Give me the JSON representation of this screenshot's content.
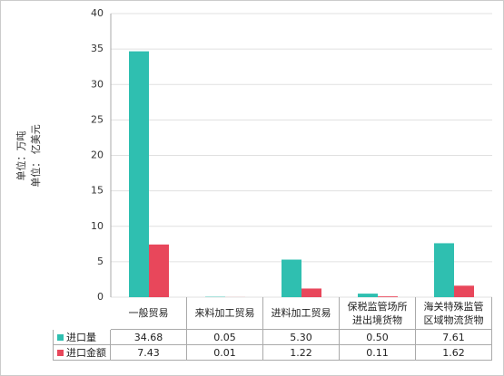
{
  "chart_data": {
    "type": "bar",
    "ylabel": [
      "单位：万吨",
      "单位： 亿美元"
    ],
    "categories": [
      "一般贸易",
      "来料加工贸易",
      "进料加工贸易",
      "保税监管场所\n进出境货物",
      "海关特殊监管\n区域物流货物"
    ],
    "series": [
      {
        "name": "进口量",
        "color": "#2fbfb0",
        "values": [
          34.68,
          0.05,
          5.3,
          0.5,
          7.61
        ],
        "value_labels": [
          "34.68",
          "0.05",
          "5.30",
          "0.50",
          "7.61"
        ]
      },
      {
        "name": "进口金额",
        "color": "#e8475b",
        "values": [
          7.43,
          0.01,
          1.22,
          0.11,
          1.62
        ],
        "value_labels": [
          "7.43",
          "0.01",
          "1.22",
          "0.11",
          "1.62"
        ]
      }
    ],
    "ylim": [
      0,
      40
    ],
    "yticks": [
      0,
      5,
      10,
      15,
      20,
      25,
      30,
      35,
      40
    ],
    "grid": true
  }
}
